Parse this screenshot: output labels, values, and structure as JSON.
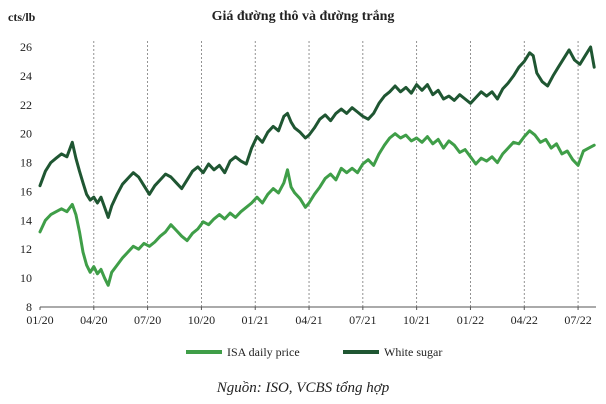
{
  "chart_data": {
    "type": "line",
    "title": "Giá đường thô và đường trắng",
    "ylabel": "cts/lb",
    "xlabel": "",
    "ylim": [
      8,
      26
    ],
    "yticks": [
      8,
      10,
      12,
      14,
      16,
      18,
      20,
      22,
      24,
      26
    ],
    "x_range": [
      0,
      31
    ],
    "xticks": [
      {
        "t": 0,
        "label": "01/20"
      },
      {
        "t": 3,
        "label": "04/20"
      },
      {
        "t": 6,
        "label": "07/20"
      },
      {
        "t": 9,
        "label": "10/20"
      },
      {
        "t": 12,
        "label": "01/21"
      },
      {
        "t": 15,
        "label": "04/21"
      },
      {
        "t": 18,
        "label": "07/21"
      },
      {
        "t": 21,
        "label": "10/21"
      },
      {
        "t": 24,
        "label": "01/22"
      },
      {
        "t": 27,
        "label": "04/22"
      },
      {
        "t": 30,
        "label": "07/22"
      }
    ],
    "grid_vertical": [
      3,
      6,
      9,
      12,
      15,
      18,
      21,
      24,
      27,
      30
    ],
    "legend_position": "bottom",
    "series": [
      {
        "name": "ISA daily price",
        "color": "#3f9e48",
        "points": [
          [
            0,
            13.2
          ],
          [
            0.3,
            14.0
          ],
          [
            0.6,
            14.4
          ],
          [
            0.9,
            14.6
          ],
          [
            1.2,
            14.8
          ],
          [
            1.5,
            14.6
          ],
          [
            1.8,
            15.1
          ],
          [
            2.0,
            14.4
          ],
          [
            2.2,
            13.2
          ],
          [
            2.4,
            11.8
          ],
          [
            2.6,
            10.9
          ],
          [
            2.8,
            10.4
          ],
          [
            3.0,
            10.8
          ],
          [
            3.2,
            10.3
          ],
          [
            3.4,
            10.6
          ],
          [
            3.6,
            10.0
          ],
          [
            3.8,
            9.5
          ],
          [
            4.0,
            10.4
          ],
          [
            4.3,
            10.9
          ],
          [
            4.6,
            11.4
          ],
          [
            4.9,
            11.8
          ],
          [
            5.2,
            12.2
          ],
          [
            5.5,
            12.0
          ],
          [
            5.8,
            12.4
          ],
          [
            6.1,
            12.2
          ],
          [
            6.4,
            12.5
          ],
          [
            6.7,
            12.9
          ],
          [
            7.0,
            13.2
          ],
          [
            7.3,
            13.7
          ],
          [
            7.6,
            13.3
          ],
          [
            7.9,
            12.9
          ],
          [
            8.2,
            12.6
          ],
          [
            8.5,
            13.1
          ],
          [
            8.8,
            13.4
          ],
          [
            9.1,
            13.9
          ],
          [
            9.4,
            13.7
          ],
          [
            9.7,
            14.1
          ],
          [
            10.0,
            14.4
          ],
          [
            10.3,
            14.1
          ],
          [
            10.6,
            14.5
          ],
          [
            10.9,
            14.2
          ],
          [
            11.2,
            14.6
          ],
          [
            11.5,
            14.9
          ],
          [
            11.8,
            15.2
          ],
          [
            12.1,
            15.6
          ],
          [
            12.4,
            15.2
          ],
          [
            12.7,
            15.8
          ],
          [
            13.0,
            16.2
          ],
          [
            13.3,
            15.9
          ],
          [
            13.6,
            16.6
          ],
          [
            13.8,
            17.5
          ],
          [
            14.0,
            16.3
          ],
          [
            14.2,
            15.9
          ],
          [
            14.5,
            15.5
          ],
          [
            14.8,
            14.9
          ],
          [
            15.0,
            15.2
          ],
          [
            15.3,
            15.8
          ],
          [
            15.6,
            16.3
          ],
          [
            15.9,
            16.9
          ],
          [
            16.2,
            17.2
          ],
          [
            16.5,
            16.8
          ],
          [
            16.8,
            17.6
          ],
          [
            17.1,
            17.3
          ],
          [
            17.4,
            17.6
          ],
          [
            17.7,
            17.3
          ],
          [
            18.0,
            17.9
          ],
          [
            18.3,
            18.2
          ],
          [
            18.6,
            17.8
          ],
          [
            18.9,
            18.6
          ],
          [
            19.2,
            19.2
          ],
          [
            19.5,
            19.7
          ],
          [
            19.8,
            20.0
          ],
          [
            20.1,
            19.7
          ],
          [
            20.4,
            19.9
          ],
          [
            20.7,
            19.5
          ],
          [
            21.0,
            19.7
          ],
          [
            21.3,
            19.4
          ],
          [
            21.6,
            19.8
          ],
          [
            21.9,
            19.3
          ],
          [
            22.2,
            19.6
          ],
          [
            22.5,
            19.0
          ],
          [
            22.8,
            19.5
          ],
          [
            23.1,
            19.2
          ],
          [
            23.4,
            18.7
          ],
          [
            23.7,
            18.9
          ],
          [
            24.0,
            18.4
          ],
          [
            24.3,
            17.9
          ],
          [
            24.6,
            18.3
          ],
          [
            24.9,
            18.1
          ],
          [
            25.2,
            18.4
          ],
          [
            25.5,
            18.0
          ],
          [
            25.8,
            18.6
          ],
          [
            26.1,
            19.0
          ],
          [
            26.4,
            19.4
          ],
          [
            26.7,
            19.3
          ],
          [
            27.0,
            19.8
          ],
          [
            27.3,
            20.2
          ],
          [
            27.6,
            19.9
          ],
          [
            27.9,
            19.4
          ],
          [
            28.2,
            19.6
          ],
          [
            28.5,
            19.0
          ],
          [
            28.8,
            19.3
          ],
          [
            29.1,
            18.6
          ],
          [
            29.4,
            18.8
          ],
          [
            29.7,
            18.2
          ],
          [
            30.0,
            17.8
          ],
          [
            30.3,
            18.8
          ],
          [
            30.6,
            19.0
          ],
          [
            30.9,
            19.2
          ]
        ]
      },
      {
        "name": "White sugar",
        "color": "#1f5632",
        "points": [
          [
            0,
            16.4
          ],
          [
            0.3,
            17.4
          ],
          [
            0.6,
            18.0
          ],
          [
            0.9,
            18.3
          ],
          [
            1.2,
            18.6
          ],
          [
            1.5,
            18.4
          ],
          [
            1.8,
            19.4
          ],
          [
            2.0,
            18.3
          ],
          [
            2.2,
            17.4
          ],
          [
            2.4,
            16.6
          ],
          [
            2.6,
            15.8
          ],
          [
            2.8,
            15.4
          ],
          [
            3.0,
            15.6
          ],
          [
            3.2,
            15.2
          ],
          [
            3.4,
            15.6
          ],
          [
            3.6,
            14.9
          ],
          [
            3.8,
            14.2
          ],
          [
            4.0,
            15.0
          ],
          [
            4.3,
            15.8
          ],
          [
            4.6,
            16.5
          ],
          [
            4.9,
            16.9
          ],
          [
            5.2,
            17.3
          ],
          [
            5.5,
            17.0
          ],
          [
            5.8,
            16.4
          ],
          [
            6.1,
            15.8
          ],
          [
            6.4,
            16.4
          ],
          [
            6.7,
            16.8
          ],
          [
            7.0,
            17.2
          ],
          [
            7.3,
            17.0
          ],
          [
            7.6,
            16.6
          ],
          [
            7.9,
            16.2
          ],
          [
            8.2,
            16.8
          ],
          [
            8.5,
            17.4
          ],
          [
            8.8,
            17.7
          ],
          [
            9.1,
            17.3
          ],
          [
            9.4,
            17.9
          ],
          [
            9.7,
            17.5
          ],
          [
            10.0,
            17.8
          ],
          [
            10.3,
            17.3
          ],
          [
            10.6,
            18.1
          ],
          [
            10.9,
            18.4
          ],
          [
            11.2,
            18.1
          ],
          [
            11.5,
            17.9
          ],
          [
            11.8,
            19.0
          ],
          [
            12.1,
            19.8
          ],
          [
            12.4,
            19.4
          ],
          [
            12.7,
            20.1
          ],
          [
            13.0,
            20.5
          ],
          [
            13.3,
            20.2
          ],
          [
            13.6,
            21.2
          ],
          [
            13.8,
            21.4
          ],
          [
            14.0,
            20.8
          ],
          [
            14.2,
            20.4
          ],
          [
            14.5,
            20.1
          ],
          [
            14.8,
            19.7
          ],
          [
            15.0,
            19.9
          ],
          [
            15.3,
            20.4
          ],
          [
            15.6,
            21.0
          ],
          [
            15.9,
            21.3
          ],
          [
            16.2,
            20.9
          ],
          [
            16.5,
            21.4
          ],
          [
            16.8,
            21.7
          ],
          [
            17.1,
            21.4
          ],
          [
            17.4,
            21.8
          ],
          [
            17.7,
            21.5
          ],
          [
            18.0,
            21.2
          ],
          [
            18.3,
            21.0
          ],
          [
            18.6,
            21.4
          ],
          [
            18.9,
            22.1
          ],
          [
            19.2,
            22.6
          ],
          [
            19.5,
            22.9
          ],
          [
            19.8,
            23.3
          ],
          [
            20.1,
            22.9
          ],
          [
            20.4,
            23.2
          ],
          [
            20.7,
            22.8
          ],
          [
            21.0,
            23.4
          ],
          [
            21.3,
            23.0
          ],
          [
            21.6,
            23.4
          ],
          [
            21.9,
            22.7
          ],
          [
            22.2,
            23.0
          ],
          [
            22.5,
            22.4
          ],
          [
            22.8,
            22.6
          ],
          [
            23.1,
            22.3
          ],
          [
            23.4,
            22.7
          ],
          [
            23.7,
            22.4
          ],
          [
            24.0,
            22.1
          ],
          [
            24.3,
            22.5
          ],
          [
            24.6,
            22.9
          ],
          [
            24.9,
            22.6
          ],
          [
            25.2,
            22.9
          ],
          [
            25.5,
            22.4
          ],
          [
            25.8,
            23.1
          ],
          [
            26.1,
            23.5
          ],
          [
            26.4,
            24.0
          ],
          [
            26.7,
            24.6
          ],
          [
            27.0,
            25.0
          ],
          [
            27.3,
            25.6
          ],
          [
            27.5,
            25.4
          ],
          [
            27.7,
            24.2
          ],
          [
            28.0,
            23.6
          ],
          [
            28.3,
            23.3
          ],
          [
            28.6,
            24.0
          ],
          [
            28.9,
            24.6
          ],
          [
            29.2,
            25.2
          ],
          [
            29.5,
            25.8
          ],
          [
            29.8,
            25.1
          ],
          [
            30.1,
            24.8
          ],
          [
            30.4,
            25.4
          ],
          [
            30.7,
            26.0
          ],
          [
            30.9,
            24.6
          ]
        ]
      }
    ],
    "annotation": "Nguồn: ISO, VCBS tổng hợp"
  }
}
